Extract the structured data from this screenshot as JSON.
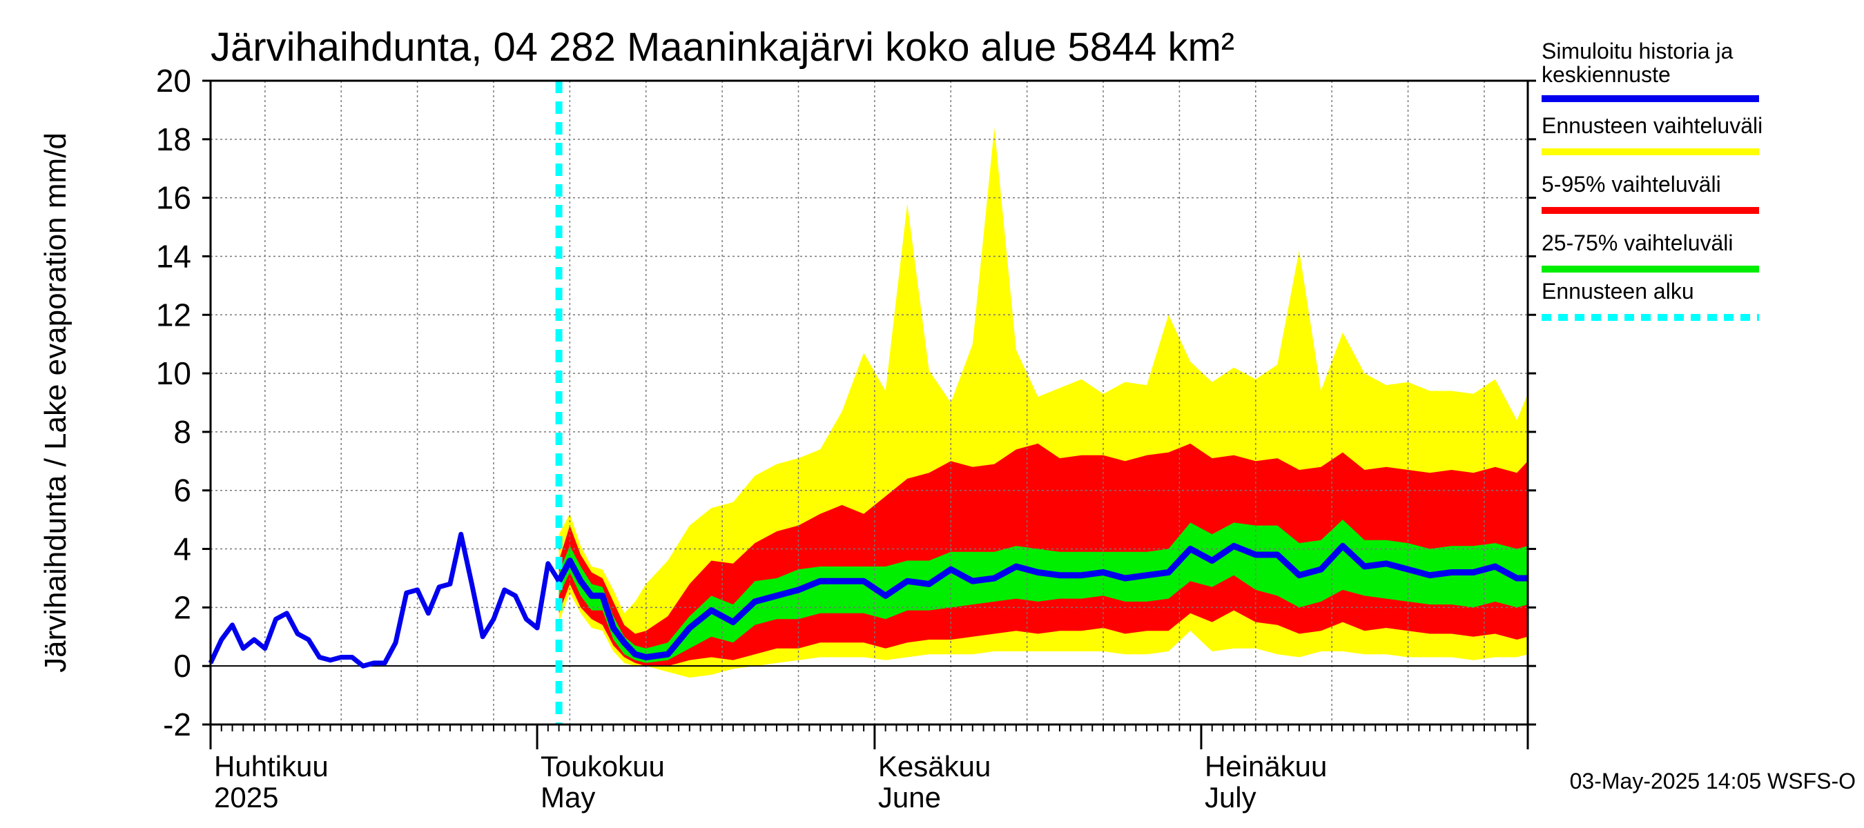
{
  "chart_data": {
    "type": "area",
    "title": "Järvihaihdunta, 04 282 Maaninkajärvi koko alue 5844 km²",
    "ylabel": "Järvihaihdunta / Lake evaporation   mm/d",
    "ylim": [
      -2,
      20
    ],
    "yticks": [
      "-2",
      "0",
      "2",
      "4",
      "6",
      "8",
      "10",
      "12",
      "14",
      "16",
      "18",
      "20"
    ],
    "grid": true,
    "x_range": [
      "2025-04-01",
      "2025-07-31"
    ],
    "month_labels": [
      {
        "fi": "Huhtikuu",
        "en": "2025",
        "date": "2025-04-01"
      },
      {
        "fi": "Toukokuu",
        "en": "May",
        "date": "2025-05-01"
      },
      {
        "fi": "Kesäkuu",
        "en": "June",
        "date": "2025-06-01"
      },
      {
        "fi": "Heinäkuu",
        "en": "July",
        "date": "2025-07-01"
      }
    ],
    "forecast_start": "2025-05-03",
    "legend_position": "right",
    "legend": [
      {
        "label": "Simuloitu historia ja keskiennuste",
        "lines": [
          "Simuloitu historia ja",
          "keskiennuste"
        ],
        "color": "#0000ee",
        "style": "solid"
      },
      {
        "label": "Ennusteen vaihteluväli",
        "lines": [
          "Ennusteen vaihteluväli"
        ],
        "color": "#ffff00",
        "style": "solid"
      },
      {
        "label": "5-95% vaihteluväli",
        "lines": [
          "5-95% vaihteluväli"
        ],
        "color": "#ff0000",
        "style": "solid"
      },
      {
        "label": "25-75% vaihteluväli",
        "lines": [
          "25-75% vaihteluväli"
        ],
        "color": "#00ee00",
        "style": "solid"
      },
      {
        "label": "Ennusteen alku",
        "lines": [
          "Ennusteen alku"
        ],
        "color": "#00ffff",
        "style": "dashed"
      }
    ],
    "history": {
      "name": "Simuloitu historia ja keskiennuste",
      "x": [
        "2025-04-01",
        "2025-04-02",
        "2025-04-03",
        "2025-04-04",
        "2025-04-05",
        "2025-04-06",
        "2025-04-07",
        "2025-04-08",
        "2025-04-09",
        "2025-04-10",
        "2025-04-11",
        "2025-04-12",
        "2025-04-13",
        "2025-04-14",
        "2025-04-15",
        "2025-04-16",
        "2025-04-17",
        "2025-04-18",
        "2025-04-19",
        "2025-04-20",
        "2025-04-21",
        "2025-04-22",
        "2025-04-23",
        "2025-04-24",
        "2025-04-25",
        "2025-04-26",
        "2025-04-27",
        "2025-04-28",
        "2025-04-29",
        "2025-04-30",
        "2025-05-01",
        "2025-05-02",
        "2025-05-03"
      ],
      "y": [
        0.1,
        0.9,
        1.4,
        0.6,
        0.9,
        0.6,
        1.6,
        1.8,
        1.1,
        0.9,
        0.3,
        0.2,
        0.3,
        0.3,
        0.0,
        0.1,
        0.1,
        0.8,
        2.5,
        2.6,
        1.8,
        2.7,
        2.8,
        4.5,
        2.8,
        1.0,
        1.6,
        2.6,
        2.4,
        1.6,
        1.3,
        3.5,
        2.9
      ]
    },
    "forecast": {
      "x": [
        "2025-05-03",
        "2025-05-04",
        "2025-05-05",
        "2025-05-06",
        "2025-05-07",
        "2025-05-08",
        "2025-05-09",
        "2025-05-10",
        "2025-05-11",
        "2025-05-13",
        "2025-05-15",
        "2025-05-17",
        "2025-05-19",
        "2025-05-21",
        "2025-05-23",
        "2025-05-25",
        "2025-05-27",
        "2025-05-29",
        "2025-05-31",
        "2025-06-02",
        "2025-06-04",
        "2025-06-06",
        "2025-06-08",
        "2025-06-10",
        "2025-06-12",
        "2025-06-14",
        "2025-06-16",
        "2025-06-18",
        "2025-06-20",
        "2025-06-22",
        "2025-06-24",
        "2025-06-26",
        "2025-06-28",
        "2025-06-30",
        "2025-07-02",
        "2025-07-04",
        "2025-07-06",
        "2025-07-08",
        "2025-07-10",
        "2025-07-12",
        "2025-07-14",
        "2025-07-16",
        "2025-07-18",
        "2025-07-20",
        "2025-07-22",
        "2025-07-24",
        "2025-07-26",
        "2025-07-28",
        "2025-07-30",
        "2025-07-31"
      ],
      "median": [
        2.9,
        3.6,
        2.9,
        2.4,
        2.4,
        1.3,
        0.8,
        0.4,
        0.3,
        0.4,
        1.3,
        1.9,
        1.5,
        2.2,
        2.4,
        2.6,
        2.9,
        2.9,
        2.9,
        2.4,
        2.9,
        2.8,
        3.3,
        2.9,
        3.0,
        3.4,
        3.2,
        3.1,
        3.1,
        3.2,
        3.0,
        3.1,
        3.2,
        4.0,
        3.6,
        4.1,
        3.8,
        3.8,
        3.1,
        3.3,
        4.1,
        3.4,
        3.5,
        3.3,
        3.1,
        3.2,
        3.2,
        3.4,
        3.0,
        3.0
      ],
      "p25": [
        2.4,
        3.2,
        2.4,
        1.9,
        1.9,
        0.9,
        0.4,
        0.2,
        0.1,
        0.2,
        0.6,
        1.0,
        0.8,
        1.4,
        1.6,
        1.6,
        1.8,
        1.8,
        1.8,
        1.6,
        1.9,
        1.9,
        2.0,
        2.1,
        2.2,
        2.3,
        2.2,
        2.3,
        2.3,
        2.4,
        2.2,
        2.2,
        2.3,
        2.9,
        2.7,
        3.1,
        2.6,
        2.4,
        2.0,
        2.2,
        2.6,
        2.4,
        2.3,
        2.2,
        2.1,
        2.1,
        2.0,
        2.2,
        2.0,
        2.1
      ],
      "p75": [
        3.2,
        4.1,
        3.4,
        2.8,
        2.7,
        1.7,
        1.0,
        0.7,
        0.6,
        0.8,
        1.7,
        2.4,
        2.1,
        2.9,
        3.0,
        3.3,
        3.4,
        3.4,
        3.4,
        3.4,
        3.6,
        3.6,
        3.9,
        3.9,
        3.9,
        4.1,
        4.0,
        3.9,
        3.9,
        3.9,
        3.9,
        3.9,
        4.0,
        4.9,
        4.5,
        4.9,
        4.8,
        4.8,
        4.2,
        4.3,
        5.0,
        4.3,
        4.3,
        4.2,
        4.0,
        4.1,
        4.1,
        4.2,
        4.0,
        4.1
      ],
      "p05": [
        1.8,
        2.8,
        2.0,
        1.6,
        1.4,
        0.7,
        0.3,
        0.1,
        0.0,
        0.0,
        0.2,
        0.3,
        0.2,
        0.4,
        0.6,
        0.6,
        0.8,
        0.8,
        0.8,
        0.6,
        0.8,
        0.9,
        0.9,
        1.0,
        1.1,
        1.2,
        1.1,
        1.2,
        1.2,
        1.3,
        1.1,
        1.2,
        1.2,
        1.8,
        1.5,
        1.9,
        1.5,
        1.4,
        1.1,
        1.2,
        1.5,
        1.2,
        1.3,
        1.2,
        1.1,
        1.1,
        1.0,
        1.1,
        0.9,
        1.0
      ],
      "p95": [
        3.6,
        4.8,
        3.8,
        3.2,
        3.0,
        2.2,
        1.4,
        1.1,
        1.2,
        1.7,
        2.8,
        3.6,
        3.5,
        4.2,
        4.6,
        4.8,
        5.2,
        5.5,
        5.2,
        5.8,
        6.4,
        6.6,
        7.0,
        6.8,
        6.9,
        7.4,
        7.6,
        7.1,
        7.2,
        7.2,
        7.0,
        7.2,
        7.3,
        7.6,
        7.1,
        7.2,
        7.0,
        7.1,
        6.7,
        6.8,
        7.3,
        6.7,
        6.8,
        6.7,
        6.6,
        6.7,
        6.6,
        6.8,
        6.6,
        7.0
      ],
      "min": [
        1.5,
        2.5,
        1.8,
        1.3,
        1.2,
        0.5,
        0.1,
        0.0,
        0.0,
        -0.2,
        -0.4,
        -0.3,
        -0.1,
        0.0,
        0.1,
        0.2,
        0.3,
        0.3,
        0.3,
        0.2,
        0.3,
        0.4,
        0.4,
        0.4,
        0.5,
        0.5,
        0.5,
        0.5,
        0.5,
        0.5,
        0.4,
        0.4,
        0.5,
        1.2,
        0.5,
        0.6,
        0.6,
        0.4,
        0.3,
        0.5,
        0.5,
        0.4,
        0.4,
        0.3,
        0.3,
        0.3,
        0.2,
        0.3,
        0.3,
        0.4
      ],
      "max": [
        4.5,
        5.2,
        4.1,
        3.4,
        3.3,
        2.6,
        1.8,
        2.2,
        2.8,
        3.6,
        4.8,
        5.4,
        5.6,
        6.5,
        6.9,
        7.1,
        7.4,
        8.7,
        10.7,
        9.4,
        15.8,
        10.1,
        9.0,
        11.0,
        18.4,
        10.8,
        9.2,
        9.5,
        9.8,
        9.3,
        9.7,
        9.6,
        12.0,
        10.4,
        9.7,
        10.2,
        9.8,
        10.3,
        14.2,
        9.4,
        11.4,
        10.0,
        9.6,
        9.7,
        9.4,
        9.4,
        9.3,
        9.8,
        8.4,
        9.3
      ]
    }
  },
  "footer": {
    "timestamp": "03-May-2025 14:05 WSFS-O"
  }
}
